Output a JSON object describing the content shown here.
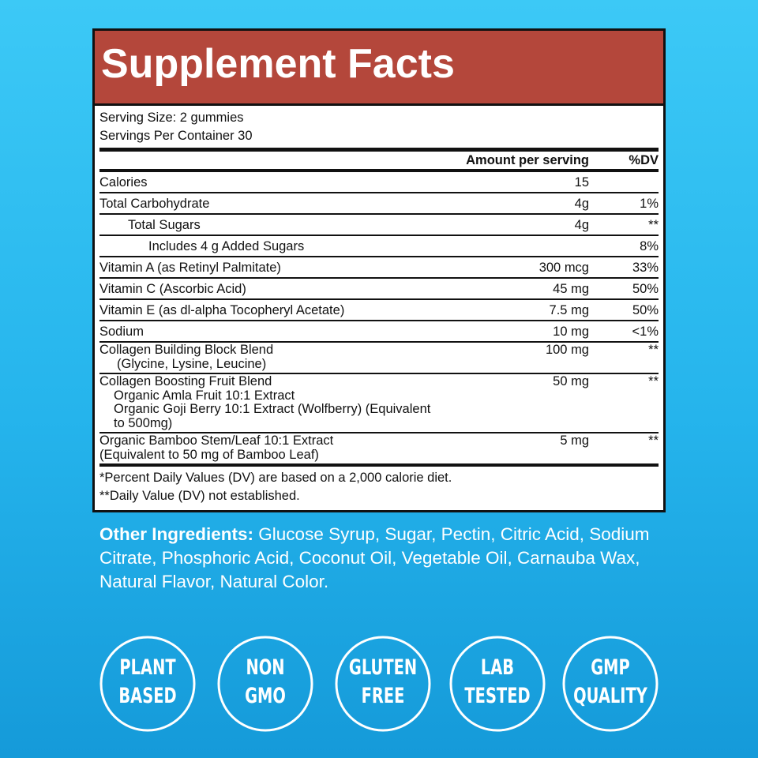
{
  "facts": {
    "title": "Supplement Facts",
    "serving_size": "Serving Size: 2 gummies",
    "servings_per_container": "Servings Per Container 30",
    "columns": {
      "amount": "Amount per serving",
      "dv": "%DV"
    },
    "rows": [
      {
        "lines": [
          "Calories"
        ],
        "amount": "15"
      },
      {
        "lines": [
          "Total Carbohydrate"
        ],
        "amount": "4g",
        "dv": "1%"
      },
      {
        "lines": [
          "Total Sugars"
        ],
        "amount": "4g",
        "dv": "**"
      },
      {
        "lines": [
          "Includes 4 g Added Sugars"
        ],
        "dv": "8%"
      },
      {
        "lines": [
          "Vitamin A (as Retinyl Palmitate)"
        ],
        "amount": "300 mcg",
        "dv": "33%"
      },
      {
        "lines": [
          "Vitamin C (Ascorbic Acid)"
        ],
        "amount": "45 mg",
        "dv": "50%"
      },
      {
        "lines": [
          "Vitamin E (as dl-alpha Tocopheryl Acetate)"
        ],
        "amount": "7.5 mg",
        "dv": "50%"
      },
      {
        "lines": [
          "Sodium"
        ],
        "amount": "10 mg",
        "dv": "<1%"
      },
      {
        "lines": [
          "Collagen Building Block Blend",
          "(Glycine, Lysine, Leucine)"
        ],
        "amount": "100 mg",
        "dv": "**"
      },
      {
        "lines": [
          "Collagen Boosting Fruit Blend",
          "Organic Amla Fruit 10:1 Extract",
          "Organic Goji Berry 10:1 Extract (Wolfberry) (Equivalent to 500mg)"
        ],
        "amount": "50 mg",
        "dv": "**"
      },
      {
        "lines": [
          "Organic Bamboo Stem/Leaf 10:1 Extract",
          "(Equivalent to 50 mg of Bamboo Leaf)"
        ],
        "amount": "5 mg",
        "dv": "**"
      }
    ],
    "footnotes": [
      "*Percent Daily Values (DV) are based on a 2,000 calorie diet.",
      "**Daily Value (DV) not established."
    ]
  },
  "other_ingredients": {
    "label": "Other Ingredients:",
    "text": "Glucose Syrup, Sugar, Pectin, Citric Acid, Sodium Citrate, Phosphoric Acid, Coconut Oil, Vegetable Oil, Carnauba Wax, Natural Flavor, Natural Color."
  },
  "badges": [
    {
      "lines": [
        "PLANT",
        "BASED"
      ]
    },
    {
      "lines": [
        "NON",
        "GMO"
      ]
    },
    {
      "lines": [
        "GLUTEN",
        "FREE"
      ]
    },
    {
      "lines": [
        "LAB",
        "TESTED"
      ]
    },
    {
      "lines": [
        "GMP",
        "QUALITY"
      ]
    }
  ]
}
